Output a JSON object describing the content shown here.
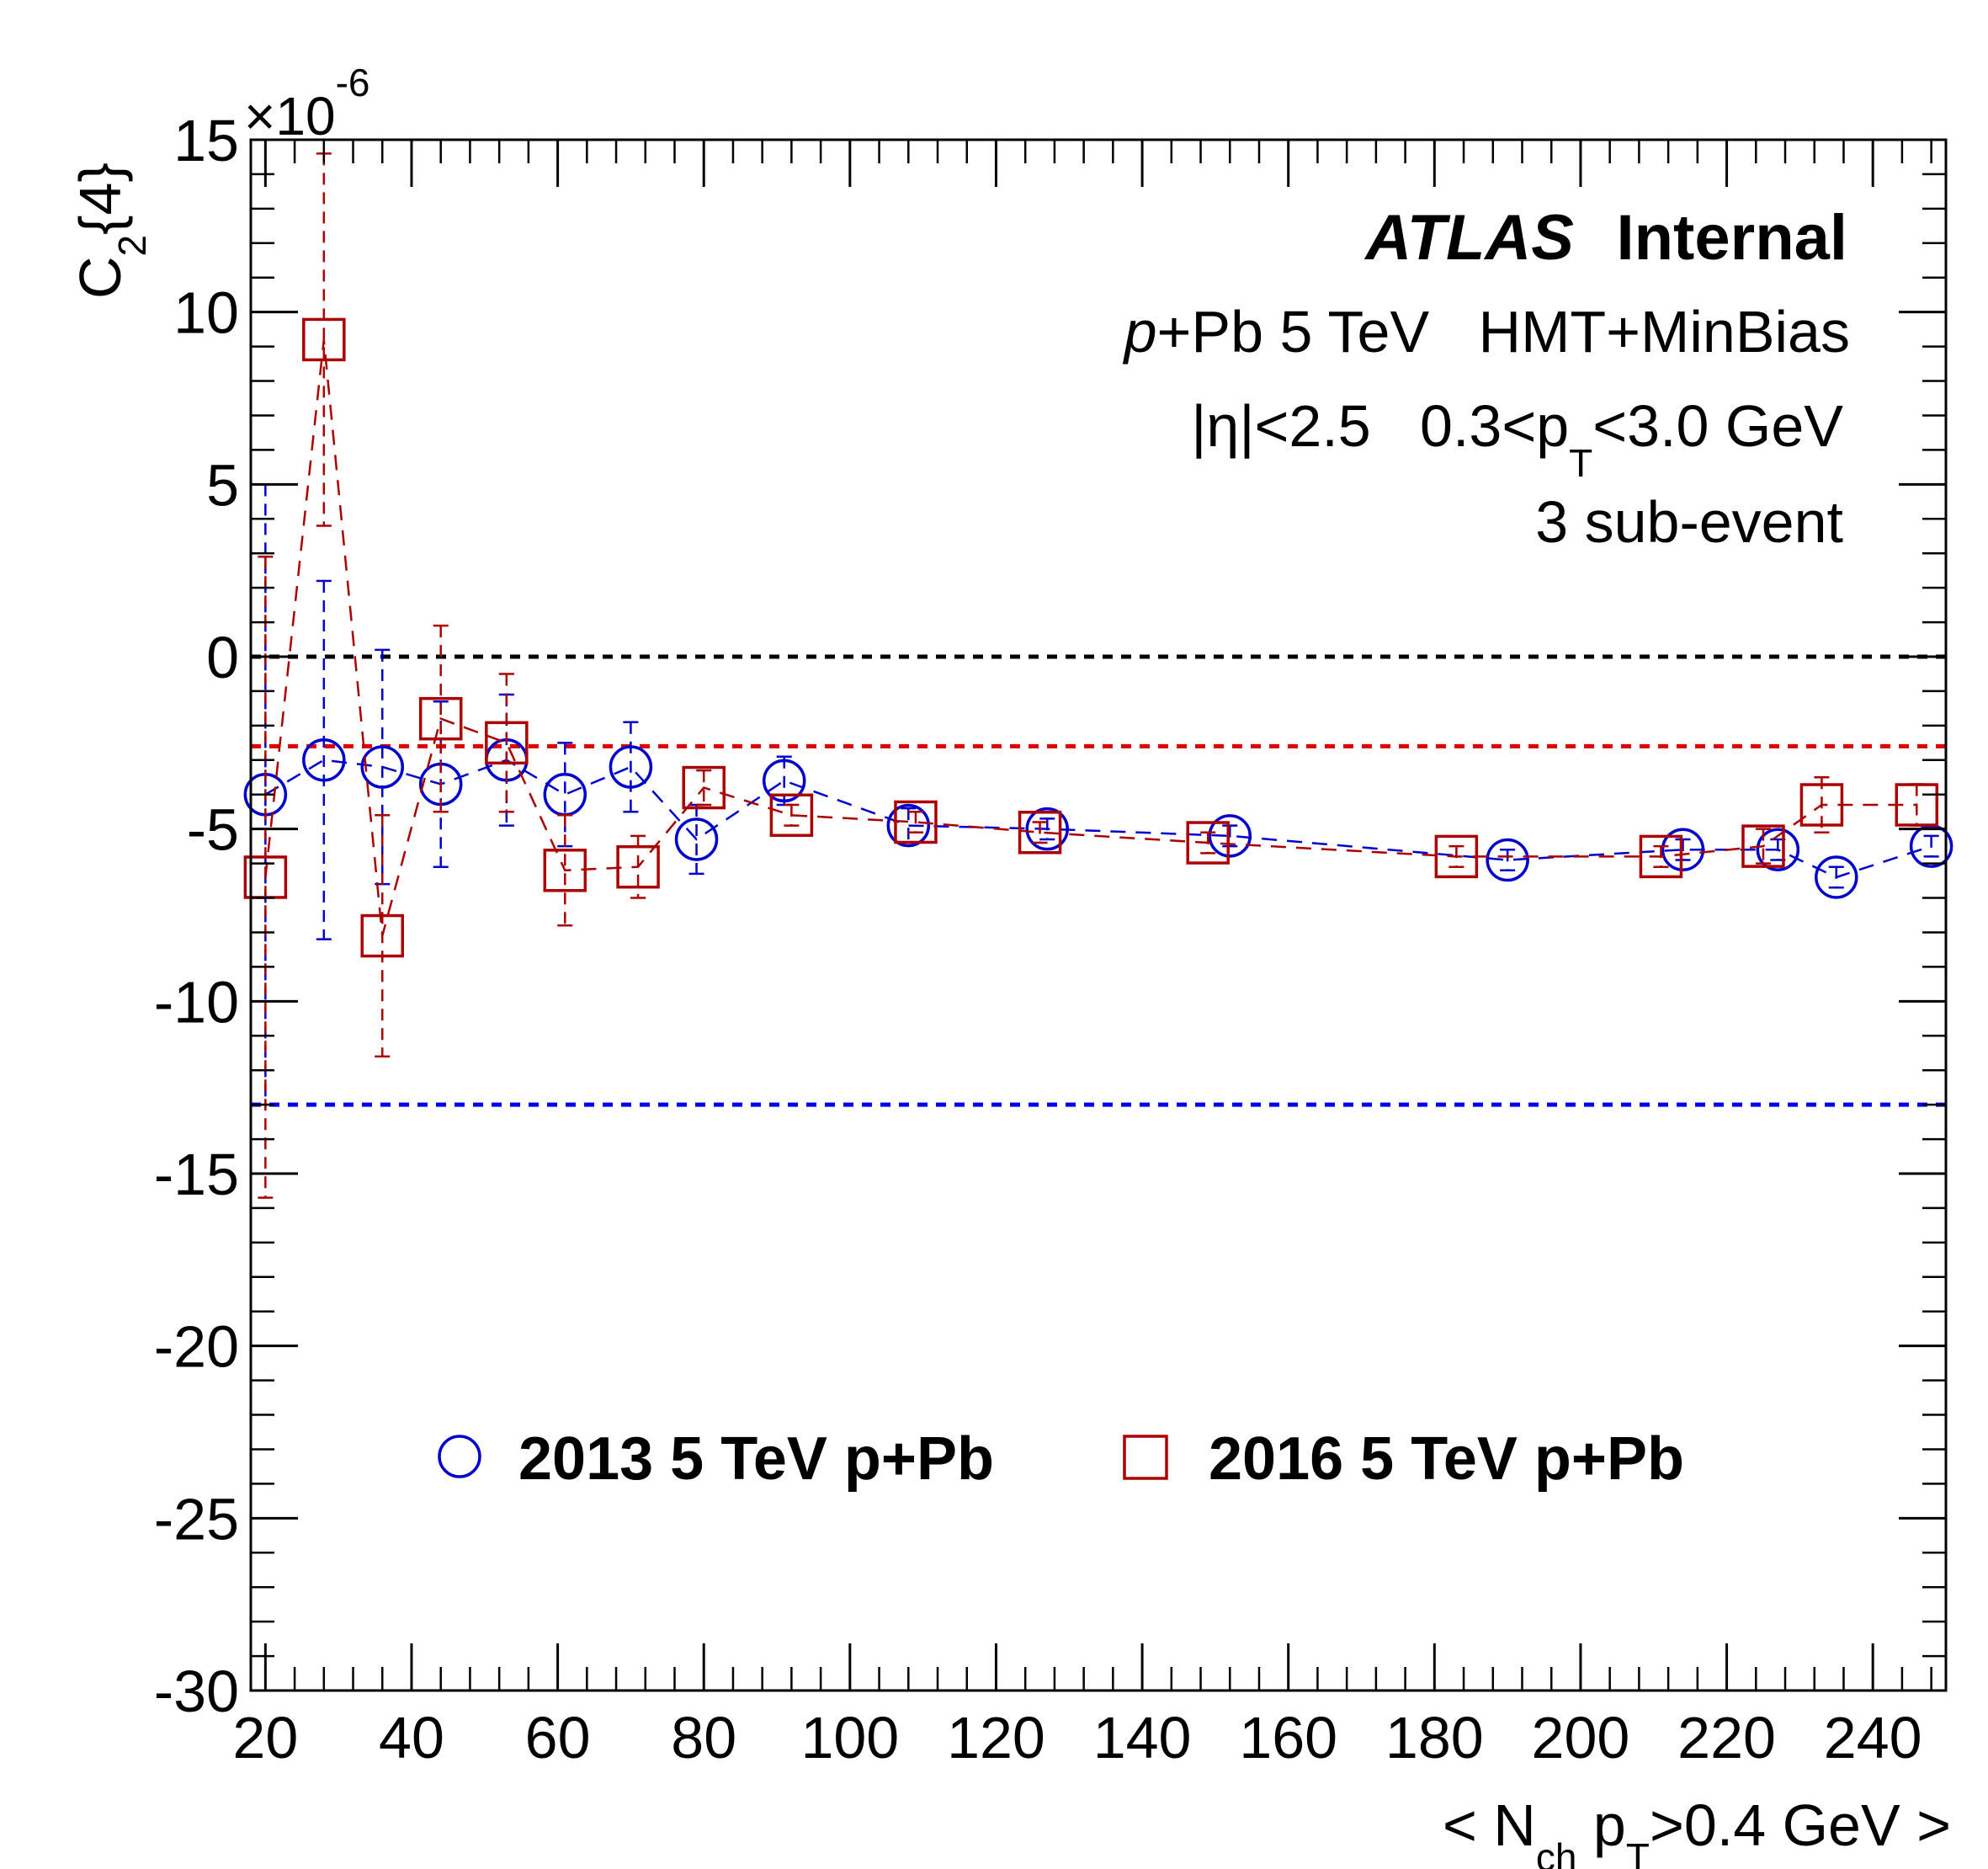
{
  "chart_data": {
    "type": "scatter",
    "title": "",
    "xlabel_parts": [
      "< N",
      "ch",
      " p",
      "T",
      ">0.4 GeV >"
    ],
    "ylabel_parts": [
      "C",
      "2",
      "{4}"
    ],
    "y_exponent_base": "×10",
    "y_exponent_power": "-6",
    "xlim": [
      18,
      250
    ],
    "ylim": [
      -30,
      15
    ],
    "x_ticks": [
      20,
      40,
      60,
      80,
      100,
      120,
      140,
      160,
      180,
      200,
      220,
      240
    ],
    "y_ticks": [
      15,
      10,
      5,
      0,
      -5,
      -10,
      -15,
      -20,
      -25,
      -30
    ],
    "grid": false,
    "reference_lines": [
      {
        "y": 0,
        "color": "#000000"
      },
      {
        "y": -2.6,
        "color": "#dd0000"
      },
      {
        "y": -13.0,
        "color": "#0000ee"
      }
    ],
    "series": [
      {
        "name": "2013 5 TeV p+Pb",
        "marker": "circle",
        "color": "#0000cc",
        "points": [
          {
            "x": 20,
            "y": -4.0,
            "err": 9.0
          },
          {
            "x": 28,
            "y": -3.0,
            "err": 5.2
          },
          {
            "x": 36,
            "y": -3.2,
            "err": 3.4
          },
          {
            "x": 44,
            "y": -3.7,
            "err": 2.4
          },
          {
            "x": 53,
            "y": -3.0,
            "err": 1.9
          },
          {
            "x": 61,
            "y": -4.0,
            "err": 1.5
          },
          {
            "x": 70,
            "y": -3.2,
            "err": 1.3
          },
          {
            "x": 79,
            "y": -5.3,
            "err": 1.0
          },
          {
            "x": 91,
            "y": -3.6,
            "err": 0.7
          },
          {
            "x": 108,
            "y": -4.9,
            "err": 0.5
          },
          {
            "x": 127,
            "y": -5.0,
            "err": 0.3
          },
          {
            "x": 152,
            "y": -5.2,
            "err": 0.3
          },
          {
            "x": 190,
            "y": -5.9,
            "err": 0.3
          },
          {
            "x": 214,
            "y": -5.6,
            "err": 0.3
          },
          {
            "x": 227,
            "y": -5.6,
            "err": 0.3
          },
          {
            "x": 235,
            "y": -6.4,
            "err": 0.3
          },
          {
            "x": 248,
            "y": -5.5,
            "err": 0.3
          }
        ]
      },
      {
        "name": "2016 5 TeV p+Pb",
        "marker": "square",
        "color": "#aa0000",
        "points": [
          {
            "x": 20,
            "y": -6.4,
            "err": 9.3
          },
          {
            "x": 28,
            "y": 9.2,
            "err": 5.4
          },
          {
            "x": 36,
            "y": -8.1,
            "err": 3.5
          },
          {
            "x": 44,
            "y": -1.8,
            "err": 2.7
          },
          {
            "x": 53,
            "y": -2.5,
            "err": 2.0
          },
          {
            "x": 61,
            "y": -6.2,
            "err": 1.6
          },
          {
            "x": 71,
            "y": -6.1,
            "err": 0.9
          },
          {
            "x": 80,
            "y": -3.8,
            "err": 0.5
          },
          {
            "x": 92,
            "y": -4.6,
            "err": 0.3
          },
          {
            "x": 109,
            "y": -4.8,
            "err": 0.3
          },
          {
            "x": 126,
            "y": -5.1,
            "err": 0.3
          },
          {
            "x": 149,
            "y": -5.4,
            "err": 0.3
          },
          {
            "x": 183,
            "y": -5.8,
            "err": 0.3
          },
          {
            "x": 211,
            "y": -5.8,
            "err": 0.3
          },
          {
            "x": 225,
            "y": -5.5,
            "err": 0.5
          },
          {
            "x": 233,
            "y": -4.3,
            "err": 0.8
          },
          {
            "x": 246,
            "y": -4.3,
            "err": 0.6
          }
        ]
      }
    ],
    "legend": {
      "placement": "bottom-center"
    },
    "annotations": {
      "atlas": "ATLAS",
      "internal": "Internal",
      "line2_italic": "p",
      "line2_rest": "+Pb 5 TeV   HMT+MinBias",
      "line3_eta": "|η|<2.5   0.3<p",
      "line3_sub": "T",
      "line3_rest": "<3.0 GeV",
      "line4": "3 sub-event"
    }
  }
}
